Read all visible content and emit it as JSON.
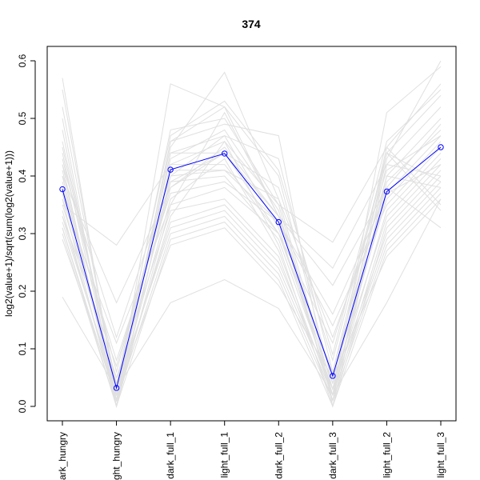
{
  "chart_data": {
    "type": "line",
    "title": "374",
    "xlabel": "",
    "ylabel": "log2(value+1)/sqrt(sum(log2(value+1)))",
    "categories": [
      "dark_hungry",
      "light_hungry",
      "dark_full_1",
      "light_full_1",
      "dark_full_2",
      "dark_full_3",
      "light_full_2",
      "light_full_3"
    ],
    "category_labels_as_printed": [
      "ark_hungry",
      "ght_hungry",
      "dark_full_1",
      "light_full_1",
      "dark_full_2",
      "dark_full_3",
      "light_full_2",
      "light_full_3"
    ],
    "ylim": [
      0,
      0.6
    ],
    "yticks": [
      "0.0",
      "0.1",
      "0.2",
      "0.3",
      "0.4",
      "0.5",
      "0.6"
    ],
    "grid": false,
    "highlight_color": "#0000ff",
    "background_color": "#e0e0e0",
    "highlight": {
      "values": [
        0.377,
        0.032,
        0.411,
        0.439,
        0.32,
        0.053,
        0.373,
        0.45
      ]
    },
    "background_series": [
      [
        0.57,
        0.01,
        0.56,
        0.52,
        0.33,
        0.01,
        0.44,
        0.39
      ],
      [
        0.55,
        0.02,
        0.45,
        0.58,
        0.36,
        0.03,
        0.43,
        0.6
      ],
      [
        0.52,
        0.03,
        0.48,
        0.5,
        0.35,
        0.02,
        0.51,
        0.59
      ],
      [
        0.5,
        0.0,
        0.46,
        0.52,
        0.4,
        0.04,
        0.45,
        0.56
      ],
      [
        0.48,
        0.01,
        0.44,
        0.44,
        0.38,
        0.08,
        0.44,
        0.54
      ],
      [
        0.46,
        0.04,
        0.43,
        0.48,
        0.34,
        0.01,
        0.42,
        0.52
      ],
      [
        0.44,
        0.02,
        0.42,
        0.42,
        0.3,
        0.06,
        0.4,
        0.5
      ],
      [
        0.43,
        0.06,
        0.41,
        0.41,
        0.36,
        0.12,
        0.38,
        0.49
      ],
      [
        0.42,
        0.0,
        0.4,
        0.47,
        0.31,
        0.02,
        0.39,
        0.48
      ],
      [
        0.4,
        0.01,
        0.39,
        0.4,
        0.29,
        0.03,
        0.37,
        0.47
      ],
      [
        0.39,
        0.03,
        0.38,
        0.45,
        0.33,
        0.05,
        0.36,
        0.46
      ],
      [
        0.38,
        0.08,
        0.37,
        0.39,
        0.32,
        0.14,
        0.35,
        0.45
      ],
      [
        0.37,
        0.02,
        0.36,
        0.43,
        0.27,
        0.02,
        0.34,
        0.44
      ],
      [
        0.36,
        0.0,
        0.35,
        0.38,
        0.3,
        0.04,
        0.33,
        0.43
      ],
      [
        0.35,
        0.05,
        0.34,
        0.36,
        0.26,
        0.01,
        0.32,
        0.42
      ],
      [
        0.34,
        0.01,
        0.33,
        0.46,
        0.28,
        0.0,
        0.31,
        0.41
      ],
      [
        0.33,
        0.02,
        0.32,
        0.35,
        0.25,
        0.03,
        0.3,
        0.4
      ],
      [
        0.32,
        0.03,
        0.31,
        0.34,
        0.24,
        0.02,
        0.29,
        0.39
      ],
      [
        0.31,
        0.01,
        0.3,
        0.33,
        0.23,
        0.01,
        0.28,
        0.38
      ],
      [
        0.3,
        0.0,
        0.29,
        0.32,
        0.22,
        0.0,
        0.27,
        0.37
      ],
      [
        0.29,
        0.02,
        0.28,
        0.31,
        0.21,
        0.05,
        0.26,
        0.36
      ],
      [
        0.35,
        0.28,
        0.42,
        0.46,
        0.35,
        0.285,
        0.45,
        0.35
      ],
      [
        0.4,
        0.18,
        0.38,
        0.44,
        0.33,
        0.24,
        0.42,
        0.4
      ],
      [
        0.36,
        0.11,
        0.35,
        0.51,
        0.33,
        0.21,
        0.38,
        0.31
      ],
      [
        0.19,
        0.03,
        0.18,
        0.22,
        0.17,
        0.02,
        0.18,
        0.36
      ],
      [
        0.41,
        0.01,
        0.44,
        0.47,
        0.43,
        0.06,
        0.44,
        0.34
      ],
      [
        0.45,
        0.04,
        0.47,
        0.53,
        0.41,
        0.09,
        0.46,
        0.55
      ],
      [
        0.33,
        0.07,
        0.39,
        0.44,
        0.3,
        0.11,
        0.41,
        0.47
      ],
      [
        0.42,
        0.12,
        0.4,
        0.41,
        0.32,
        0.16,
        0.37,
        0.42
      ],
      [
        0.31,
        0.0,
        0.46,
        0.49,
        0.47,
        0.0,
        0.4,
        0.38
      ]
    ]
  }
}
